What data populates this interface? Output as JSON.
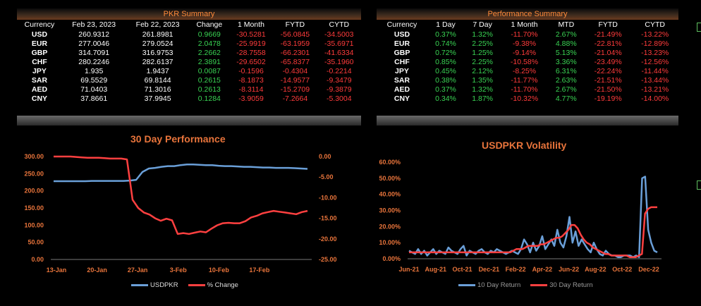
{
  "pkr_summary": {
    "title": "PKR Summary",
    "headers": [
      "Currency",
      "Feb 23, 2023",
      "Feb 22, 2023",
      "Change",
      "1 Month",
      "FYTD",
      "CYTD"
    ],
    "rows": [
      [
        "USD",
        "260.9312",
        "261.8981",
        "0.9669",
        "-30.5281",
        "-56.0845",
        "-34.5003"
      ],
      [
        "EUR",
        "277.0046",
        "279.0524",
        "2.0478",
        "-25.9919",
        "-63.1959",
        "-35.6971"
      ],
      [
        "GBP",
        "314.7091",
        "316.9753",
        "2.2662",
        "-28.7558",
        "-66.2301",
        "-41.6334"
      ],
      [
        "CHF",
        "280.2246",
        "282.6137",
        "2.3891",
        "-29.6502",
        "-65.8377",
        "-35.1960"
      ],
      [
        "JPY",
        "1.935",
        "1.9437",
        "0.0087",
        "-0.1596",
        "-0.4304",
        "-0.2214"
      ],
      [
        "SAR",
        "69.5529",
        "69.8144",
        "0.2615",
        "-8.1873",
        "-14.9577",
        "-9.3479"
      ],
      [
        "AED",
        "71.0403",
        "71.3016",
        "0.2613",
        "-8.3114",
        "-15.2709",
        "-9.3879"
      ],
      [
        "CNY",
        "37.8661",
        "37.9945",
        "0.1284",
        "-3.9059",
        "-7.2664",
        "-5.3004"
      ]
    ]
  },
  "performance_summary": {
    "title": "Performance Summary",
    "headers": [
      "Currency",
      "1 Day",
      "7 Day",
      "1 Month",
      "MTD",
      "FYTD",
      "CYTD"
    ],
    "rows": [
      [
        "USD",
        "0.37%",
        "1.32%",
        "-11.70%",
        "2.67%",
        "-21.49%",
        "-13.22%"
      ],
      [
        "EUR",
        "0.74%",
        "2.25%",
        "-9.38%",
        "4.88%",
        "-22.81%",
        "-12.89%"
      ],
      [
        "GBP",
        "0.72%",
        "1.25%",
        "-9.14%",
        "5.13%",
        "-21.04%",
        "-13.23%"
      ],
      [
        "CHF",
        "0.85%",
        "2.25%",
        "-10.58%",
        "3.36%",
        "-23.49%",
        "-12.56%"
      ],
      [
        "JPY",
        "0.45%",
        "2.12%",
        "-8.25%",
        "6.31%",
        "-22.24%",
        "-11.44%"
      ],
      [
        "SAR",
        "0.38%",
        "1.35%",
        "-11.77%",
        "2.63%",
        "-21.51%",
        "-13.44%"
      ],
      [
        "AED",
        "0.37%",
        "1.32%",
        "-11.70%",
        "2.67%",
        "-21.50%",
        "-13.21%"
      ],
      [
        "CNY",
        "0.34%",
        "1.87%",
        "-10.32%",
        "4.77%",
        "-19.19%",
        "-14.00%"
      ]
    ]
  },
  "colors": {
    "positive": "#39d353",
    "negative": "#ff3b3b",
    "accent": "#e8743b",
    "blue_line": "#6a9fd8",
    "red_line": "#ff4040"
  },
  "chart_data": [
    {
      "type": "line",
      "title": "30 Day Performance",
      "x_tick_labels": [
        "13-Jan",
        "20-Jan",
        "27-Jan",
        "3-Feb",
        "10-Feb",
        "17-Feb"
      ],
      "y_left_ticks": [
        "0.00",
        "50.00",
        "100.00",
        "150.00",
        "200.00",
        "250.00",
        "300.00"
      ],
      "y_right_ticks": [
        "0.00",
        "-5.00",
        "-10.00",
        "-15.00",
        "-20.00",
        "-25.00"
      ],
      "ylim_left": [
        0,
        300
      ],
      "ylim_right": [
        -25,
        0
      ],
      "series": [
        {
          "name": "USDPKR",
          "axis": "left",
          "values": [
            228,
            228,
            228,
            228,
            228,
            228,
            229,
            229,
            229,
            229,
            229,
            229,
            230,
            232,
            255,
            265,
            267,
            270,
            272,
            272,
            275,
            277,
            277,
            276,
            275,
            275,
            273,
            272,
            272,
            271,
            270,
            270,
            269,
            268,
            268,
            267,
            267,
            267,
            266,
            265,
            264
          ]
        },
        {
          "name": "% Change",
          "axis": "right",
          "values": [
            0,
            0,
            0,
            0,
            -0.1,
            -0.2,
            -0.3,
            -0.3,
            -0.3,
            -0.4,
            -0.5,
            -0.5,
            -0.5,
            -0.7,
            -10.5,
            -12.5,
            -13.6,
            -14.1,
            -15.0,
            -15.6,
            -15.1,
            -15.5,
            -18.8,
            -18.6,
            -18.8,
            -18.5,
            -18.2,
            -18.4,
            -17.5,
            -16.7,
            -16.2,
            -16.1,
            -16.2,
            -16.2,
            -15.7,
            -14.8,
            -14.4,
            -13.8,
            -13.5,
            -13.2,
            -13.4,
            -13.6,
            -13.8,
            -14.0,
            -13.5,
            -13.2
          ]
        }
      ]
    },
    {
      "type": "line",
      "title": "USDPKR Volatility",
      "x_tick_labels": [
        "Jun-21",
        "Aug-21",
        "Oct-21",
        "Dec-21",
        "Feb-22",
        "Apr-22",
        "Jun-22",
        "Aug-22",
        "Oct-22",
        "Dec-22"
      ],
      "y_ticks": [
        "0.00%",
        "10.00%",
        "20.00%",
        "30.00%",
        "40.00%",
        "50.00%",
        "60.00%"
      ],
      "ylim": [
        0,
        60
      ],
      "series": [
        {
          "name": "10 Day Return",
          "values": [
            5,
            4,
            3,
            6,
            3,
            5,
            2,
            4,
            6,
            3,
            5,
            4,
            3,
            7,
            5,
            4,
            3,
            6,
            8,
            2,
            5,
            4,
            3,
            5,
            6,
            4,
            3,
            5,
            4,
            6,
            5,
            4,
            3,
            4,
            5,
            4,
            3,
            6,
            12,
            9,
            4,
            10,
            5,
            8,
            14,
            6,
            9,
            12,
            8,
            18,
            10,
            7,
            14,
            26,
            10,
            17,
            8,
            12,
            9,
            6,
            4,
            10,
            6,
            3,
            2,
            5,
            3,
            2,
            2,
            1,
            1,
            2,
            2,
            2,
            1,
            2,
            1,
            50,
            51,
            18,
            10,
            5,
            4
          ]
        },
        {
          "name": "30 Day Return",
          "values": [
            4,
            4,
            4,
            4,
            4,
            4,
            4,
            4,
            4,
            4,
            4,
            4,
            4,
            4,
            4,
            4,
            4,
            4,
            4,
            4,
            4,
            4,
            4,
            4,
            4,
            4,
            4,
            4,
            4,
            4,
            4,
            4,
            4,
            4,
            5,
            6,
            6,
            6,
            7,
            8,
            8,
            8,
            8,
            9,
            9,
            10,
            11,
            12,
            13,
            13,
            14,
            16,
            18,
            21,
            21,
            19,
            15,
            12,
            10,
            9,
            7,
            6,
            5,
            4,
            3,
            3,
            2,
            2,
            2,
            2,
            2,
            2,
            1,
            1,
            1,
            2,
            3,
            28,
            31,
            32,
            32,
            32
          ]
        }
      ]
    }
  ]
}
